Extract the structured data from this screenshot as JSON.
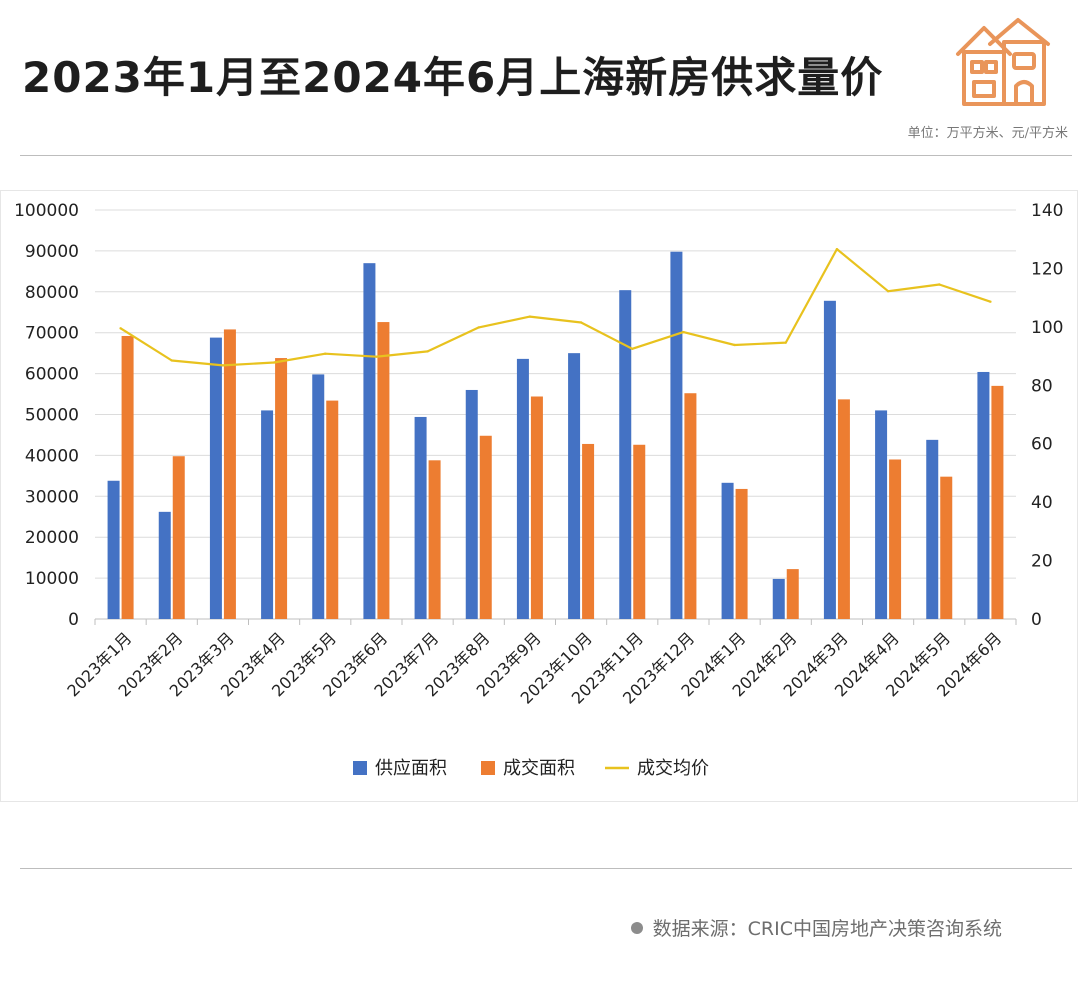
{
  "header": {
    "title": "2023年1月至2024年6月上海新房供求量价",
    "unit": "单位：万平方米、元/平方米",
    "logo_icon": "house-icon"
  },
  "footer": {
    "source": "数据来源：CRIC中国房地产决策咨询系统"
  },
  "colors": {
    "supply": "#4472C4",
    "deal": "#ED7D31",
    "price": "#E8C21E",
    "logo": "#E9955A",
    "grid": "#dcdcdc"
  },
  "chart_data": {
    "type": "bar",
    "title": "",
    "xlabel": "",
    "ylabel": "",
    "categories": [
      "2023年1月",
      "2023年2月",
      "2023年3月",
      "2023年4月",
      "2023年5月",
      "2023年6月",
      "2023年7月",
      "2023年8月",
      "2023年9月",
      "2023年10月",
      "2023年11月",
      "2023年12月",
      "2024年1月",
      "2024年2月",
      "2024年3月",
      "2024年4月",
      "2024年5月",
      "2024年6月"
    ],
    "series": [
      {
        "name": "供应面积",
        "type": "bar",
        "axis": "left",
        "values": [
          33800,
          26200,
          68800,
          51000,
          59800,
          87000,
          49400,
          56000,
          63600,
          65000,
          80400,
          89800,
          33300,
          9800,
          77800,
          51000,
          43800,
          60400
        ]
      },
      {
        "name": "成交面积",
        "type": "bar",
        "axis": "left",
        "values": [
          69200,
          39800,
          70800,
          63800,
          53400,
          72600,
          38800,
          44800,
          54400,
          42800,
          42600,
          55200,
          31800,
          12200,
          53700,
          39000,
          34800,
          57000
        ]
      },
      {
        "name": "成交均价",
        "type": "line",
        "axis": "right",
        "values": [
          99.5,
          88.5,
          86.8,
          87.8,
          90.8,
          89.8,
          91.6,
          99.8,
          103.5,
          101.5,
          92.5,
          98.2,
          93.8,
          94.6,
          126.6,
          112.2,
          114.5,
          108.6
        ]
      }
    ],
    "y_left": {
      "min": 0,
      "max": 100000,
      "ticks": [
        "0",
        "10000",
        "20000",
        "30000",
        "40000",
        "50000",
        "60000",
        "70000",
        "80000",
        "90000",
        "100000"
      ]
    },
    "y_right": {
      "min": 0,
      "max": 140,
      "ticks": [
        "0",
        "20",
        "40",
        "60",
        "80",
        "100",
        "120",
        "140"
      ]
    },
    "grid": true,
    "legend": "bottom"
  }
}
